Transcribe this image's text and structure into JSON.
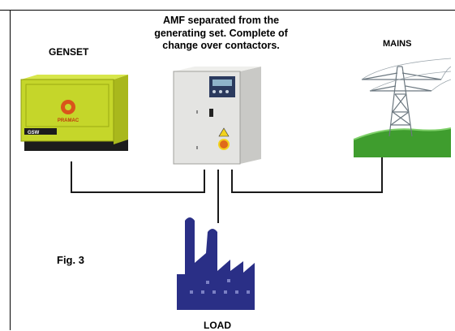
{
  "caption": {
    "line1": "AMF separated from the",
    "line2": "generating set. Complete of",
    "line3": "change over contactors."
  },
  "labels": {
    "genset": "GENSET",
    "mains": "MAINS",
    "figure": "Fig. 3",
    "load": "LOAD"
  },
  "genset_unit": {
    "brand": "PRAMAC",
    "model": "GSW"
  },
  "colors": {
    "genset_body": "#c5d62a",
    "genset_base": "#1c1c1c",
    "panel_body": "#e4e4e2",
    "display": "#2b3a5e",
    "stop_button": "#e06a1a",
    "factory": "#2a2f86",
    "ground": "#3f9d2e",
    "tower": "#6c7880",
    "line": "#1a1a1a"
  }
}
